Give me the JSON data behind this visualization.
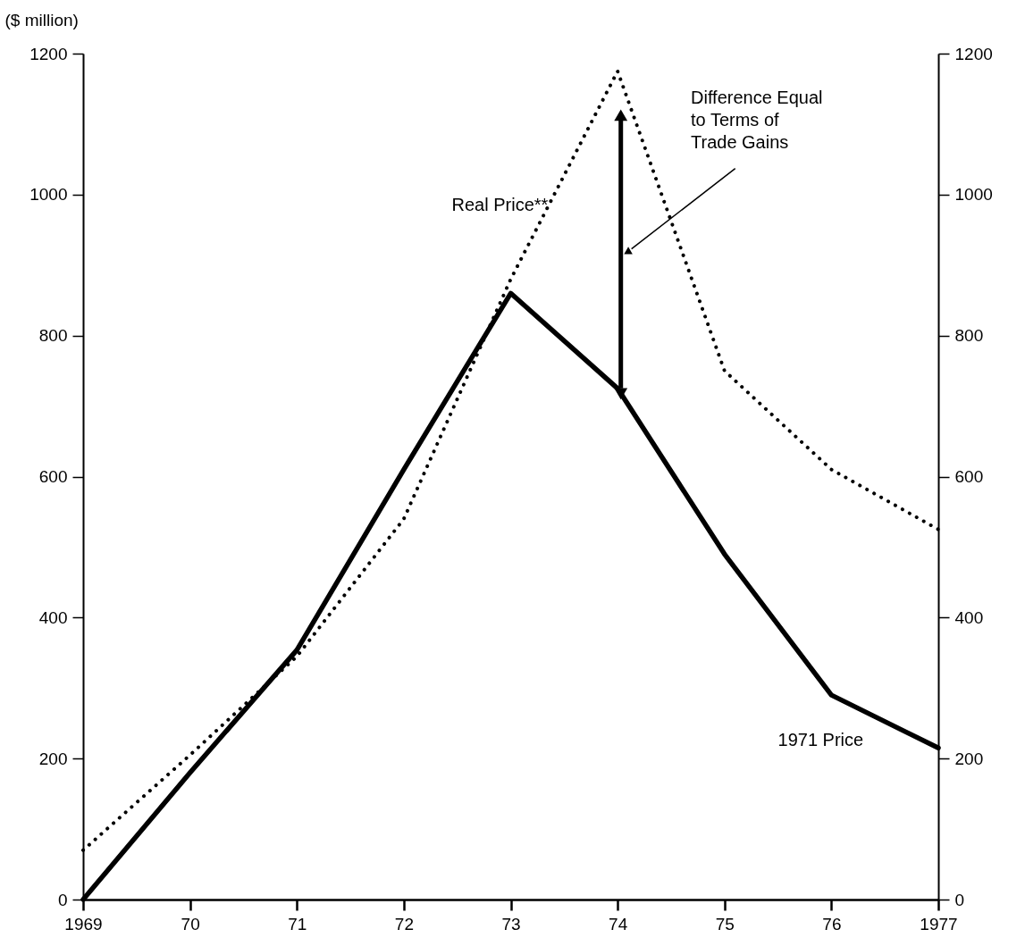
{
  "chart_data": {
    "type": "line",
    "ylabel": "($ million)",
    "x": [
      1969,
      1970,
      1971,
      1972,
      1973,
      1974,
      1975,
      1976,
      1977
    ],
    "series": [
      {
        "name": "1971 Price",
        "color": "#000000",
        "line_style": "solid",
        "values": [
          0,
          180,
          354,
          610,
          860,
          725,
          490,
          290,
          215
        ]
      },
      {
        "name": "Real Price**",
        "color": "#000000",
        "line_style": "dotted",
        "values": [
          70,
          205,
          345,
          540,
          880,
          1175,
          750,
          610,
          525
        ]
      }
    ],
    "xlim": [
      1969,
      1977
    ],
    "xticks": [
      1969,
      {
        "value": 1970,
        "label": "70"
      },
      {
        "value": 1971,
        "label": "71"
      },
      {
        "value": 1972,
        "label": "72"
      },
      {
        "value": 1973,
        "label": "73"
      },
      {
        "value": 1974,
        "label": "74"
      },
      {
        "value": 1975,
        "label": "75"
      },
      {
        "value": 1976,
        "label": "76"
      },
      1977
    ],
    "ylim": [
      0,
      1200
    ],
    "yticks": [
      0,
      200,
      400,
      600,
      800,
      1000,
      1200
    ],
    "y2lim": [
      0,
      1200
    ],
    "y2ticks": [
      0,
      200,
      400,
      600,
      800,
      1000,
      1200
    ],
    "annotations": [
      "Difference Equal\nto Terms of\nTrade Gains"
    ],
    "grid": false,
    "marker": "none"
  }
}
